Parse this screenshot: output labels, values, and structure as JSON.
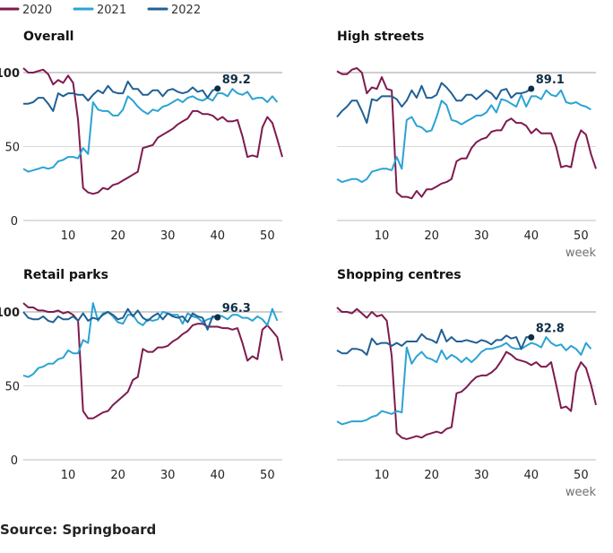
{
  "source": "Source: Springboard",
  "chart_data": {
    "type": "line",
    "layout": "small-multiples 2x2",
    "legend": {
      "placement": "top-left",
      "entries": [
        "2020",
        "2021",
        "2022"
      ]
    },
    "colors": {
      "2020": "#7f1a4f",
      "2021": "#2ba3d4",
      "2022": "#206095"
    },
    "xlabel": "week",
    "xlim": [
      1,
      53
    ],
    "ylim": [
      0,
      110
    ],
    "xticks": [
      10,
      20,
      30,
      40,
      50
    ],
    "yticks": [
      0,
      50,
      100
    ],
    "grid": "horizontal",
    "panels": [
      {
        "title": "Overall",
        "annotation": {
          "series": "2022",
          "week": 40,
          "label": "89.2"
        },
        "series": [
          {
            "name": "2020",
            "values": [
              103,
              100,
              100,
              101,
              102,
              99,
              92,
              95,
              93,
              98,
              93,
              68,
              22,
              19,
              18,
              19,
              22,
              21,
              24,
              25,
              27,
              29,
              31,
              33,
              49,
              50,
              51,
              56,
              58,
              60,
              62,
              65,
              67,
              69,
              74,
              74,
              72,
              72,
              71,
              68,
              70,
              67,
              67,
              68,
              57,
              43,
              44,
              43,
              63,
              70,
              66,
              55,
              43
            ]
          },
          {
            "name": "2021",
            "values": [
              35,
              33,
              34,
              35,
              36,
              35,
              36,
              40,
              41,
              43,
              43,
              42,
              49,
              45,
              80,
              75,
              74,
              74,
              71,
              71,
              75,
              84,
              81,
              77,
              74,
              72,
              75,
              74,
              77,
              78,
              80,
              82,
              80,
              83,
              84,
              82,
              81,
              83,
              81,
              86,
              86,
              84,
              89,
              86,
              85,
              87,
              82,
              83,
              83,
              80,
              84,
              80
            ]
          },
          {
            "name": "2022",
            "values": [
              79,
              79,
              80,
              83,
              83,
              79,
              74,
              86,
              84,
              86,
              86,
              85,
              85,
              81,
              85,
              88,
              86,
              91,
              87,
              86,
              86,
              94,
              89,
              89,
              85,
              85,
              88,
              88,
              84,
              88,
              89,
              87,
              86,
              87,
              90,
              87,
              88,
              83,
              88,
              89.2
            ]
          }
        ]
      },
      {
        "title": "High streets",
        "annotation": {
          "series": "2022",
          "week": 40,
          "label": "89.1"
        },
        "series": [
          {
            "name": "2020",
            "values": [
              101,
              99,
              99,
              102,
              103,
              100,
              86,
              90,
              89,
              97,
              89,
              88,
              19,
              16,
              16,
              15,
              20,
              16,
              21,
              21,
              23,
              25,
              26,
              28,
              40,
              42,
              42,
              49,
              53,
              55,
              56,
              60,
              61,
              61,
              67,
              69,
              66,
              66,
              64,
              59,
              62,
              59,
              59,
              59,
              50,
              36,
              37,
              36,
              53,
              61,
              58,
              45,
              35
            ]
          },
          {
            "name": "2021",
            "values": [
              28,
              26,
              27,
              28,
              28,
              26,
              28,
              33,
              34,
              35,
              35,
              34,
              43,
              35,
              68,
              70,
              64,
              63,
              60,
              61,
              70,
              81,
              78,
              68,
              67,
              65,
              67,
              69,
              71,
              71,
              73,
              78,
              73,
              82,
              81,
              79,
              77,
              85,
              77,
              84,
              84,
              82,
              88,
              85,
              84,
              88,
              80,
              79,
              80,
              78,
              77,
              75
            ]
          },
          {
            "name": "2022",
            "values": [
              70,
              74,
              77,
              81,
              81,
              74,
              66,
              82,
              81,
              84,
              84,
              84,
              82,
              77,
              81,
              88,
              83,
              91,
              83,
              83,
              85,
              93,
              90,
              86,
              81,
              81,
              85,
              85,
              82,
              85,
              88,
              86,
              82,
              88,
              89,
              83,
              86,
              86,
              87,
              89.1
            ]
          }
        ]
      },
      {
        "title": "Retail parks",
        "annotation": {
          "series": "2022",
          "week": 40,
          "label": "96.3"
        },
        "series": [
          {
            "name": "2020",
            "values": [
              106,
              103,
              103,
              101,
              101,
              100,
              100,
              101,
              99,
              100,
              98,
              94,
              33,
              28,
              28,
              30,
              32,
              33,
              37,
              40,
              43,
              46,
              54,
              56,
              75,
              73,
              73,
              76,
              76,
              77,
              80,
              82,
              85,
              87,
              91,
              92,
              92,
              90,
              90,
              90,
              89,
              89,
              88,
              89,
              79,
              67,
              70,
              68,
              88,
              91,
              87,
              83,
              67
            ]
          },
          {
            "name": "2021",
            "values": [
              57,
              56,
              58,
              62,
              63,
              65,
              65,
              68,
              69,
              74,
              72,
              72,
              81,
              79,
              106,
              94,
              99,
              100,
              97,
              93,
              92,
              98,
              98,
              93,
              91,
              95,
              94,
              95,
              100,
              99,
              98,
              98,
              92,
              99,
              97,
              96,
              93,
              95,
              96,
              98,
              97,
              95,
              98,
              98,
              96,
              96,
              94,
              97,
              95,
              91,
              102,
              94
            ]
          },
          {
            "name": "2022",
            "values": [
              100,
              96,
              95,
              95,
              97,
              94,
              93,
              97,
              95,
              95,
              97,
              94,
              99,
              94,
              96,
              95,
              98,
              100,
              98,
              95,
              96,
              102,
              97,
              101,
              96,
              94,
              97,
              99,
              95,
              99,
              97,
              96,
              97,
              93,
              99,
              97,
              96,
              88,
              97,
              96.3
            ]
          }
        ]
      },
      {
        "title": "Shopping centres",
        "annotation": {
          "series": "2022",
          "week": 40,
          "label": "82.8"
        },
        "series": [
          {
            "name": "2020",
            "values": [
              103,
              100,
              100,
              99,
              102,
              99,
              96,
              100,
              97,
              98,
              94,
              70,
              18,
              15,
              14,
              15,
              16,
              15,
              17,
              18,
              19,
              18,
              21,
              22,
              45,
              46,
              49,
              53,
              56,
              57,
              57,
              59,
              62,
              67,
              73,
              71,
              68,
              67,
              66,
              64,
              66,
              63,
              63,
              66,
              51,
              35,
              36,
              33,
              59,
              66,
              62,
              51,
              37
            ]
          },
          {
            "name": "2021",
            "values": [
              26,
              24,
              25,
              26,
              26,
              26,
              27,
              29,
              30,
              33,
              32,
              31,
              33,
              32,
              76,
              65,
              70,
              73,
              69,
              68,
              66,
              74,
              68,
              71,
              69,
              66,
              69,
              66,
              69,
              73,
              75,
              75,
              76,
              77,
              79,
              76,
              75,
              75,
              77,
              79,
              78,
              76,
              83,
              79,
              77,
              78,
              74,
              77,
              75,
              71,
              79,
              75
            ]
          },
          {
            "name": "2022",
            "values": [
              74,
              72,
              72,
              75,
              75,
              74,
              71,
              82,
              78,
              79,
              79,
              77,
              79,
              77,
              80,
              80,
              80,
              85,
              82,
              81,
              79,
              88,
              80,
              83,
              80,
              80,
              81,
              80,
              79,
              81,
              80,
              78,
              81,
              81,
              84,
              82,
              83,
              75,
              83,
              82.8
            ]
          }
        ]
      }
    ]
  }
}
